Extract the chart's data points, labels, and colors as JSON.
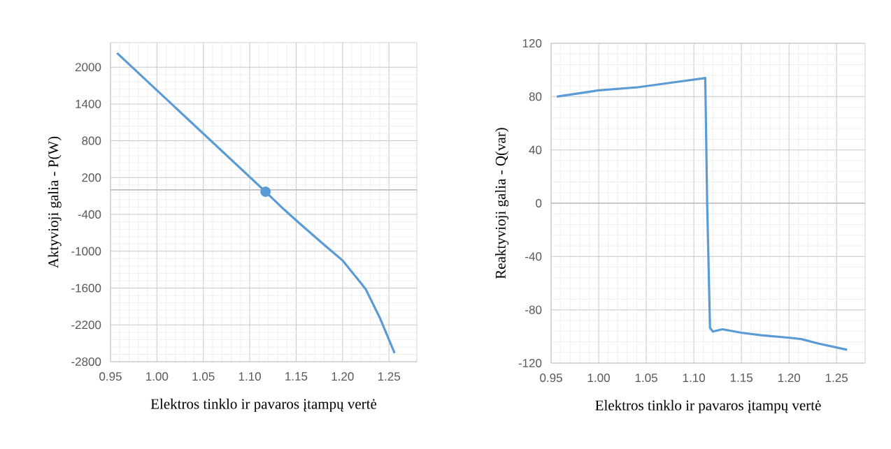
{
  "chart_data": [
    {
      "type": "line",
      "xlabel": "Elektros tinklo ir pavaros įtampų vertė",
      "ylabel": "Aktyvioji galia - P(W)",
      "xlim": [
        0.95,
        1.28
      ],
      "ylim": [
        -2800,
        2400
      ],
      "xticks": [
        0.95,
        {
          "value": 1.0,
          "label": "1.00"
        },
        1.05,
        {
          "value": 1.1,
          "label": "1.10"
        },
        1.15,
        {
          "value": 1.2,
          "label": "1.20"
        },
        1.25
      ],
      "yticks": [
        -2800,
        -2200,
        -1600,
        -1000,
        -400,
        200,
        800,
        1400,
        2000
      ],
      "grid": true,
      "legend": false,
      "ref_lines": [
        {
          "axis": "y",
          "value": 0,
          "color": "#bfbfbf"
        }
      ],
      "series": [
        {
          "color": "#5b9bd5",
          "marker": "none",
          "x": [
            0.957,
            1.117,
            1.137,
            1.151,
            1.179,
            1.2,
            1.215,
            1.225,
            1.24,
            1.256
          ],
          "values": [
            2230,
            -30,
            -320,
            -510,
            -880,
            -1150,
            -1430,
            -1620,
            -2080,
            -2660
          ]
        },
        {
          "type": "scatter",
          "color": "#5b9bd5",
          "marker": "circle",
          "x": [
            1.117
          ],
          "values": [
            -30
          ]
        }
      ]
    },
    {
      "type": "line",
      "xlabel": "Elektros tinklo ir pavaros įtampų vertė",
      "ylabel": "Reaktyvioji galia - Q(var)",
      "xlim": [
        0.95,
        1.28
      ],
      "ylim": [
        -120,
        120
      ],
      "xticks": [
        0.95,
        {
          "value": 1.0,
          "label": "1.00"
        },
        1.05,
        {
          "value": 1.1,
          "label": "1.10"
        },
        1.15,
        {
          "value": 1.2,
          "label": "1.20"
        },
        1.25
      ],
      "yticks": [
        -120,
        -80,
        -40,
        0,
        40,
        80,
        120
      ],
      "grid": true,
      "legend": false,
      "ref_lines": [
        {
          "axis": "y",
          "value": 0,
          "color": "#bfbfbf"
        }
      ],
      "series": [
        {
          "color": "#5b9bd5",
          "marker": "none",
          "x": [
            0.956,
            1.0,
            1.041,
            1.081,
            1.109,
            1.112,
            1.114,
            1.117,
            1.12,
            1.13,
            1.15,
            1.171,
            1.201,
            1.213,
            1.231,
            1.261
          ],
          "values": [
            80,
            84.7,
            87,
            90.9,
            93.6,
            94,
            0,
            -93.6,
            -96.3,
            -94.6,
            -97.2,
            -99.1,
            -101,
            -102,
            -105.3,
            -110
          ]
        }
      ]
    }
  ]
}
